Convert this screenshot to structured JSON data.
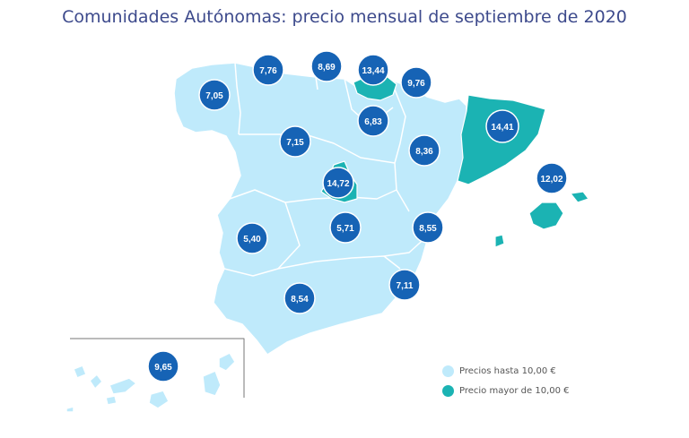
{
  "title": "Comunidades Autónomas: precio mensual de septiembre de 2020",
  "colors": {
    "low": "#bfeafb",
    "high": "#1bb3b3",
    "badge": "#1663b5",
    "badge_text": "#ffffff"
  },
  "legend": [
    {
      "label": "Precios hasta 10,00 €",
      "color": "#bfeafb"
    },
    {
      "label": "Precio mayor de 10,00 €",
      "color": "#1bb3b3"
    }
  ],
  "regions": [
    {
      "name": "Galicia",
      "value": "7,05",
      "category": "low"
    },
    {
      "name": "Asturias",
      "value": "7,76",
      "category": "low"
    },
    {
      "name": "Cantabria",
      "value": "8,69",
      "category": "low"
    },
    {
      "name": "País Vasco",
      "value": "13,44",
      "category": "high"
    },
    {
      "name": "Navarra",
      "value": "9,76",
      "category": "low"
    },
    {
      "name": "La Rioja",
      "value": "6,83",
      "category": "low"
    },
    {
      "name": "Aragón",
      "value": "8,36",
      "category": "low"
    },
    {
      "name": "Cataluña",
      "value": "14,41",
      "category": "high"
    },
    {
      "name": "Castilla y León",
      "value": "7,15",
      "category": "low"
    },
    {
      "name": "Madrid",
      "value": "14,72",
      "category": "high"
    },
    {
      "name": "Baleares",
      "value": "12,02",
      "category": "high"
    },
    {
      "name": "Extremadura",
      "value": "5,40",
      "category": "low"
    },
    {
      "name": "Castilla-La Mancha",
      "value": "5,71",
      "category": "low"
    },
    {
      "name": "C. Valenciana",
      "value": "8,55",
      "category": "low"
    },
    {
      "name": "Murcia",
      "value": "7,11",
      "category": "low"
    },
    {
      "name": "Andalucía",
      "value": "8,54",
      "category": "low"
    },
    {
      "name": "Canarias",
      "value": "9,65",
      "category": "low"
    }
  ]
}
